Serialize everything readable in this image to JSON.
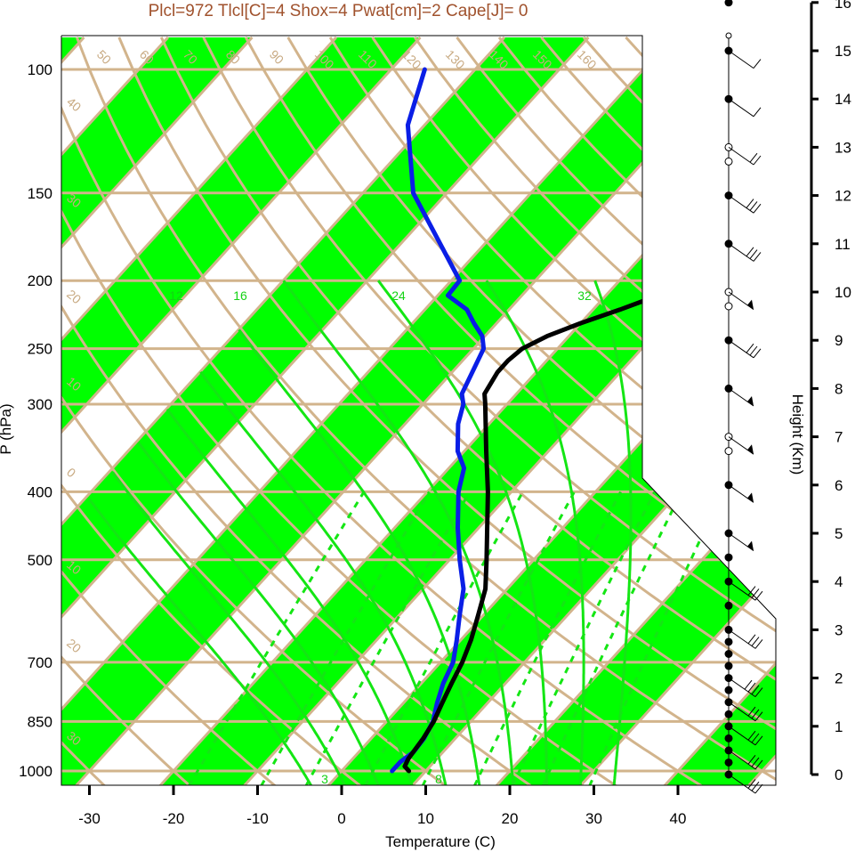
{
  "title": "Plcl=972 Tlcl[C]=4 Shox=4 Pwat[cm]=2 Cape[J]= 0",
  "colors": {
    "band": "#00ff00",
    "isotherm": "#d2b48c",
    "moist_adiabat": "#14e614",
    "mixing_ratio": "#14e614",
    "temperature": "#000000",
    "dewpoint": "#0a1ee6",
    "title": "#a0522d"
  },
  "chart_data": {
    "type": "line",
    "chart_kind": "skew-t log-p",
    "title": "Plcl=972 Tlcl[C]=4 Shox=4 Pwat[cm]=2 Cape[J]= 0",
    "xlabel": "Temperature (C)",
    "ylabel": "P (hPa)",
    "ylabel_right": "Height (Km)",
    "x_ticks": [
      -30,
      -20,
      -10,
      0,
      10,
      20,
      30,
      40
    ],
    "x_tick_labels": [
      "-30",
      "-20",
      "-10",
      "0",
      "10",
      "20",
      "30",
      "40"
    ],
    "y_ticks": [
      100,
      150,
      200,
      250,
      300,
      400,
      500,
      700,
      850,
      1000
    ],
    "y_tick_labels": [
      "100",
      "150",
      "200",
      "250",
      "300",
      "400",
      "500",
      "700",
      "850",
      "1000"
    ],
    "height_ticks_km": [
      0,
      1,
      2,
      3,
      4,
      5,
      6,
      7,
      8,
      9,
      10,
      11,
      12,
      13,
      14,
      15,
      16
    ],
    "height_tick_labels": [
      "0",
      "1",
      "2",
      "3",
      "4",
      "5",
      "6",
      "7",
      "8",
      "9",
      "10",
      "11",
      "12",
      "13",
      "14",
      "15",
      "16"
    ],
    "xlim": [
      -33,
      52
    ],
    "ylim_hpa": [
      1050,
      100
    ],
    "skewed_isotherm_labels": [
      {
        "t": -50,
        "label": "50"
      },
      {
        "t": -40,
        "label": "40"
      },
      {
        "t": -30,
        "label": "30"
      },
      {
        "t": -20,
        "label": "20"
      },
      {
        "t": -10,
        "label": "10"
      },
      {
        "t": 0,
        "label": "0"
      },
      {
        "t": 10,
        "label": "10"
      },
      {
        "t": 20,
        "label": "20"
      },
      {
        "t": 30,
        "label": "30"
      }
    ],
    "upper_isotherm_labels": [
      "50",
      "60",
      "70",
      "80",
      "90",
      "100",
      "110",
      "120",
      "130",
      "140",
      "150",
      "160"
    ],
    "right_isotherm_labels": [
      "30",
      "20",
      "10",
      "0",
      "10",
      "20",
      "30"
    ],
    "left_isotherm_labels": [
      "40",
      "30",
      "20",
      "10",
      "0",
      "10",
      "20",
      "30"
    ],
    "moist_adiabat_labels": [
      "12",
      "16",
      "24",
      "32"
    ],
    "mixing_ratio_labels": [
      "3",
      "8"
    ],
    "series": [
      {
        "name": "temperature",
        "points": [
          {
            "p": 1000,
            "t": 8
          },
          {
            "p": 985,
            "t": 7
          },
          {
            "p": 960,
            "t": 6.6
          },
          {
            "p": 900,
            "t": 6.2
          },
          {
            "p": 850,
            "t": 5.6
          },
          {
            "p": 800,
            "t": 4.6
          },
          {
            "p": 750,
            "t": 3.6
          },
          {
            "p": 700,
            "t": 2.6
          },
          {
            "p": 650,
            "t": 1.2
          },
          {
            "p": 600,
            "t": -0.6
          },
          {
            "p": 550,
            "t": -2.6
          },
          {
            "p": 500,
            "t": -5.6
          },
          {
            "p": 450,
            "t": -9
          },
          {
            "p": 400,
            "t": -12.8
          },
          {
            "p": 350,
            "t": -17.4
          },
          {
            "p": 300,
            "t": -22.6
          },
          {
            "p": 290,
            "t": -23.8
          },
          {
            "p": 270,
            "t": -24.6
          },
          {
            "p": 260,
            "t": -24.6
          },
          {
            "p": 250,
            "t": -24.2
          },
          {
            "p": 240,
            "t": -22.6
          },
          {
            "p": 230,
            "t": -20
          },
          {
            "p": 220,
            "t": -16.8
          },
          {
            "p": 210,
            "t": -13.8
          },
          {
            "p": 200,
            "t": -12.6
          },
          {
            "p": 190,
            "t": -11.4
          },
          {
            "p": 180,
            "t": -10.6
          },
          {
            "p": 170,
            "t": -10.2
          },
          {
            "p": 160,
            "t": -10
          },
          {
            "p": 150,
            "t": -9.4
          },
          {
            "p": 140,
            "t": -8.4
          },
          {
            "p": 130,
            "t": -7.6
          },
          {
            "p": 120,
            "t": -8.4
          },
          {
            "p": 110,
            "t": -7.6
          },
          {
            "p": 100,
            "t": -7
          }
        ]
      },
      {
        "name": "dewpoint",
        "points": [
          {
            "p": 1000,
            "t": 6
          },
          {
            "p": 970,
            "t": 6
          },
          {
            "p": 940,
            "t": 6.5
          },
          {
            "p": 900,
            "t": 6.3
          },
          {
            "p": 850,
            "t": 5.5
          },
          {
            "p": 800,
            "t": 4
          },
          {
            "p": 750,
            "t": 2.6
          },
          {
            "p": 700,
            "t": 1.5
          },
          {
            "p": 650,
            "t": -0.5
          },
          {
            "p": 600,
            "t": -2.8
          },
          {
            "p": 550,
            "t": -5.2
          },
          {
            "p": 500,
            "t": -8.8
          },
          {
            "p": 450,
            "t": -12.5
          },
          {
            "p": 400,
            "t": -16.3
          },
          {
            "p": 370,
            "t": -18.2
          },
          {
            "p": 350,
            "t": -20.8
          },
          {
            "p": 320,
            "t": -23.7
          },
          {
            "p": 300,
            "t": -25.2
          },
          {
            "p": 290,
            "t": -26.5
          },
          {
            "p": 270,
            "t": -27.6
          },
          {
            "p": 250,
            "t": -28.8
          },
          {
            "p": 240,
            "t": -30.3
          },
          {
            "p": 230,
            "t": -32.7
          },
          {
            "p": 220,
            "t": -35
          },
          {
            "p": 210,
            "t": -38.8
          },
          {
            "p": 200,
            "t": -39
          },
          {
            "p": 150,
            "t": -54
          },
          {
            "p": 120,
            "t": -62
          },
          {
            "p": 100,
            "t": -66
          }
        ]
      }
    ],
    "height_markers_km": [
      0,
      0.25,
      0.5,
      0.75,
      1,
      1.25,
      1.5,
      1.75,
      2,
      2.25,
      2.5,
      2.75,
      3,
      3.5,
      4,
      4.5,
      5,
      6,
      7,
      8,
      9,
      10,
      11,
      12,
      13,
      14,
      15,
      16
    ],
    "wind_profile": [
      {
        "h": 0,
        "barbs": 3,
        "flag": false
      },
      {
        "h": 0.5,
        "barbs": 3,
        "flag": false
      },
      {
        "h": 1,
        "barbs": 3,
        "flag": false
      },
      {
        "h": 1.5,
        "barbs": 3,
        "flag": false
      },
      {
        "h": 2,
        "barbs": 4,
        "flag": false
      },
      {
        "h": 3,
        "barbs": 3,
        "flag": false
      },
      {
        "h": 4,
        "barbs": 3,
        "flag": false
      },
      {
        "h": 5,
        "barbs": 0,
        "flag": true
      },
      {
        "h": 6,
        "barbs": 0,
        "flag": true
      },
      {
        "h": 7,
        "barbs": 0,
        "flag": true
      },
      {
        "h": 8,
        "barbs": 0,
        "flag": true
      },
      {
        "h": 9,
        "barbs": 3,
        "flag": false
      },
      {
        "h": 10,
        "barbs": 0,
        "flag": true
      },
      {
        "h": 11,
        "barbs": 3,
        "flag": false
      },
      {
        "h": 12,
        "barbs": 3,
        "flag": false
      },
      {
        "h": 13,
        "barbs": 2,
        "flag": false
      },
      {
        "h": 14,
        "barbs": 1,
        "flag": false
      },
      {
        "h": 15,
        "barbs": 1,
        "flag": false
      }
    ]
  }
}
